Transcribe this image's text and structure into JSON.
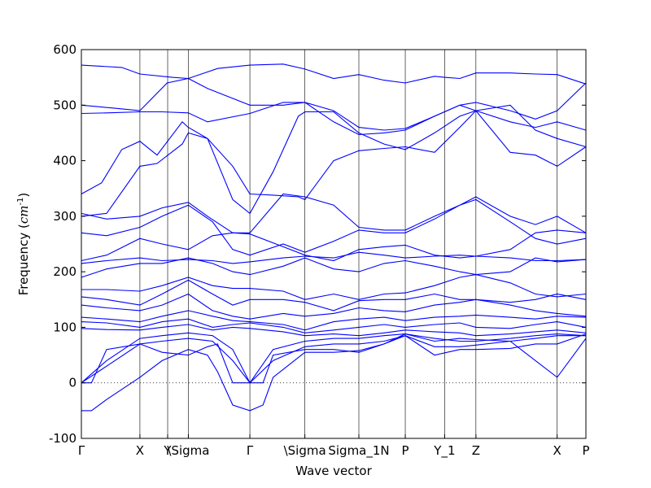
{
  "chart_data": {
    "type": "line",
    "xlabel": "Wave vector",
    "ylabel": "Frequency ($cm^{-1}$)",
    "ylim": [
      -100,
      600
    ],
    "yticks": [
      -100,
      0,
      100,
      200,
      300,
      400,
      500,
      600
    ],
    "xlim": [
      0,
      1
    ],
    "grid": false,
    "zero_line": {
      "y": 0,
      "style": "dotted",
      "color": "#000000"
    },
    "band_color": "#0000ff",
    "high_symmetry_points": [
      {
        "label": "Γ",
        "x": 0.0
      },
      {
        "label": "X",
        "x": 0.116
      },
      {
        "label": "Y",
        "x": 0.171
      },
      {
        "label": "\\Sigma",
        "x": 0.212
      },
      {
        "label": "Γ",
        "x": 0.334
      },
      {
        "label": "\\Sigma",
        "x": 0.443
      },
      {
        "label": "Sigma_1N",
        "x": 0.55
      },
      {
        "label": "P",
        "x": 0.642
      },
      {
        "label": "Y_1",
        "x": 0.72
      },
      {
        "label": "Z",
        "x": 0.782
      },
      {
        "label": "X",
        "x": 0.943
      },
      {
        "label": "P",
        "x": 1.0
      }
    ],
    "series": [
      {
        "x": [
          0,
          0.08,
          0.116,
          0.18,
          0.212,
          0.27,
          0.334,
          0.4,
          0.443,
          0.5,
          0.55,
          0.6,
          0.642,
          0.7,
          0.72,
          0.75,
          0.782,
          0.85,
          0.9,
          0.943,
          1.0
        ],
        "y": [
          572,
          568,
          556,
          550,
          548,
          566,
          572,
          574,
          565,
          548,
          555,
          545,
          540,
          552,
          550,
          548,
          558,
          558,
          556,
          555,
          538
        ]
      },
      {
        "x": [
          0,
          0.06,
          0.116,
          0.17,
          0.212,
          0.25,
          0.334,
          0.4,
          0.443,
          0.5,
          0.55,
          0.6,
          0.642,
          0.7,
          0.75,
          0.782,
          0.85,
          0.9,
          0.943,
          1.0
        ],
        "y": [
          500,
          495,
          490,
          540,
          548,
          530,
          500,
          500,
          505,
          470,
          447,
          450,
          455,
          480,
          500,
          505,
          490,
          475,
          490,
          540
        ]
      },
      {
        "x": [
          0,
          0.05,
          0.116,
          0.16,
          0.212,
          0.25,
          0.334,
          0.4,
          0.443,
          0.5,
          0.55,
          0.6,
          0.642,
          0.7,
          0.75,
          0.782,
          0.85,
          0.9,
          0.943,
          1.0
        ],
        "y": [
          485,
          486,
          488,
          488,
          486,
          470,
          485,
          505,
          505,
          490,
          460,
          455,
          458,
          480,
          500,
          490,
          470,
          460,
          470,
          455
        ]
      },
      {
        "x": [
          0,
          0.04,
          0.08,
          0.116,
          0.15,
          0.2,
          0.212,
          0.25,
          0.3,
          0.334,
          0.38,
          0.43,
          0.443,
          0.5,
          0.55,
          0.6,
          0.642,
          0.7,
          0.75,
          0.782,
          0.85,
          0.9,
          0.943,
          1.0
        ],
        "y": [
          340,
          360,
          420,
          435,
          410,
          470,
          460,
          440,
          390,
          340,
          338,
          335,
          330,
          400,
          418,
          422,
          425,
          415,
          460,
          490,
          500,
          455,
          440,
          425
        ]
      },
      {
        "x": [
          0,
          0.05,
          0.116,
          0.15,
          0.2,
          0.212,
          0.25,
          0.3,
          0.334,
          0.38,
          0.43,
          0.443,
          0.5,
          0.55,
          0.6,
          0.642,
          0.7,
          0.75,
          0.782,
          0.85,
          0.9,
          0.943,
          1.0
        ],
        "y": [
          300,
          305,
          390,
          395,
          430,
          450,
          440,
          330,
          305,
          380,
          480,
          488,
          488,
          450,
          430,
          420,
          450,
          480,
          490,
          415,
          410,
          390,
          425
        ]
      },
      {
        "x": [
          0,
          0.05,
          0.116,
          0.16,
          0.212,
          0.25,
          0.3,
          0.334,
          0.4,
          0.443,
          0.5,
          0.55,
          0.6,
          0.642,
          0.7,
          0.75,
          0.782,
          0.85,
          0.9,
          0.943,
          1.0
        ],
        "y": [
          305,
          295,
          300,
          315,
          325,
          300,
          270,
          270,
          340,
          335,
          320,
          280,
          275,
          275,
          300,
          320,
          335,
          300,
          285,
          300,
          270
        ]
      },
      {
        "x": [
          0,
          0.05,
          0.116,
          0.16,
          0.212,
          0.26,
          0.3,
          0.334,
          0.4,
          0.443,
          0.5,
          0.55,
          0.6,
          0.642,
          0.7,
          0.75,
          0.782,
          0.85,
          0.9,
          0.943,
          1.0
        ],
        "y": [
          270,
          265,
          280,
          300,
          320,
          290,
          240,
          230,
          250,
          235,
          255,
          275,
          270,
          270,
          295,
          320,
          330,
          290,
          260,
          250,
          260
        ]
      },
      {
        "x": [
          0,
          0.05,
          0.116,
          0.16,
          0.212,
          0.26,
          0.3,
          0.334,
          0.4,
          0.443,
          0.5,
          0.55,
          0.6,
          0.642,
          0.7,
          0.75,
          0.782,
          0.85,
          0.9,
          0.943,
          1.0
        ],
        "y": [
          220,
          230,
          260,
          250,
          240,
          265,
          270,
          268,
          245,
          230,
          220,
          240,
          245,
          248,
          230,
          225,
          228,
          240,
          270,
          275,
          270
        ]
      },
      {
        "x": [
          0,
          0.05,
          0.116,
          0.16,
          0.212,
          0.26,
          0.3,
          0.334,
          0.4,
          0.443,
          0.5,
          0.55,
          0.6,
          0.642,
          0.7,
          0.75,
          0.782,
          0.85,
          0.9,
          0.943,
          1.0
        ],
        "y": [
          215,
          220,
          225,
          220,
          222,
          220,
          215,
          218,
          225,
          228,
          225,
          235,
          230,
          225,
          228,
          230,
          228,
          225,
          220,
          220,
          222
        ]
      },
      {
        "x": [
          0,
          0.05,
          0.116,
          0.16,
          0.212,
          0.26,
          0.3,
          0.334,
          0.4,
          0.443,
          0.5,
          0.55,
          0.6,
          0.642,
          0.7,
          0.75,
          0.782,
          0.85,
          0.9,
          0.943,
          1.0
        ],
        "y": [
          190,
          205,
          215,
          215,
          225,
          215,
          200,
          195,
          210,
          225,
          205,
          200,
          215,
          220,
          210,
          200,
          195,
          200,
          225,
          218,
          222
        ]
      },
      {
        "x": [
          0,
          0.05,
          0.116,
          0.16,
          0.212,
          0.26,
          0.3,
          0.334,
          0.4,
          0.443,
          0.5,
          0.55,
          0.6,
          0.642,
          0.7,
          0.75,
          0.782,
          0.85,
          0.9,
          0.943,
          1.0
        ],
        "y": [
          168,
          168,
          165,
          175,
          190,
          175,
          170,
          170,
          165,
          150,
          160,
          150,
          160,
          162,
          175,
          190,
          195,
          180,
          160,
          155,
          160
        ]
      },
      {
        "x": [
          0,
          0.05,
          0.116,
          0.16,
          0.212,
          0.26,
          0.3,
          0.334,
          0.4,
          0.443,
          0.5,
          0.55,
          0.6,
          0.642,
          0.7,
          0.75,
          0.782,
          0.85,
          0.9,
          0.943,
          1.0
        ],
        "y": [
          155,
          150,
          140,
          160,
          185,
          160,
          140,
          150,
          150,
          145,
          130,
          148,
          150,
          150,
          160,
          150,
          150,
          145,
          150,
          160,
          150
        ]
      },
      {
        "x": [
          0,
          0.05,
          0.116,
          0.16,
          0.212,
          0.26,
          0.3,
          0.334,
          0.4,
          0.443,
          0.5,
          0.55,
          0.6,
          0.642,
          0.7,
          0.75,
          0.782,
          0.85,
          0.9,
          0.943,
          1.0
        ],
        "y": [
          140,
          135,
          130,
          140,
          160,
          130,
          120,
          115,
          125,
          120,
          125,
          135,
          130,
          128,
          140,
          145,
          150,
          140,
          130,
          125,
          120
        ]
      },
      {
        "x": [
          0,
          0.05,
          0.116,
          0.16,
          0.212,
          0.26,
          0.3,
          0.334,
          0.4,
          0.443,
          0.5,
          0.55,
          0.6,
          0.642,
          0.7,
          0.75,
          0.782,
          0.85,
          0.9,
          0.943,
          1.0
        ],
        "y": [
          118,
          115,
          110,
          120,
          130,
          120,
          112,
          110,
          105,
          95,
          110,
          115,
          118,
          112,
          118,
          120,
          122,
          118,
          115,
          120,
          118
        ]
      },
      {
        "x": [
          0,
          0.05,
          0.116,
          0.16,
          0.212,
          0.26,
          0.3,
          0.334,
          0.4,
          0.443,
          0.5,
          0.55,
          0.6,
          0.642,
          0.7,
          0.75,
          0.782,
          0.85,
          0.9,
          0.943,
          1.0
        ],
        "y": [
          110,
          108,
          100,
          110,
          115,
          100,
          105,
          108,
          100,
          90,
          95,
          100,
          105,
          100,
          105,
          108,
          100,
          98,
          105,
          110,
          100
        ]
      },
      {
        "x": [
          0,
          0.05,
          0.116,
          0.16,
          0.212,
          0.26,
          0.3,
          0.334,
          0.4,
          0.443,
          0.5,
          0.55,
          0.6,
          0.642,
          0.7,
          0.75,
          0.782,
          0.85,
          0.9,
          0.943,
          1.0
        ],
        "y": [
          98,
          96,
          95,
          100,
          105,
          95,
          100,
          98,
          92,
          85,
          88,
          85,
          90,
          95,
          92,
          90,
          85,
          88,
          92,
          95,
          90
        ]
      },
      {
        "x": [
          0,
          0.05,
          0.116,
          0.16,
          0.212,
          0.26,
          0.3,
          0.334,
          0.38,
          0.443,
          0.5,
          0.55,
          0.6,
          0.642,
          0.7,
          0.75,
          0.782,
          0.85,
          0.9,
          0.943,
          1.0
        ],
        "y": [
          0,
          40,
          80,
          85,
          90,
          85,
          60,
          0,
          60,
          75,
          80,
          80,
          85,
          88,
          80,
          75,
          75,
          80,
          85,
          88,
          85
        ]
      },
      {
        "x": [
          0,
          0.05,
          0.116,
          0.16,
          0.212,
          0.26,
          0.3,
          0.334,
          0.38,
          0.443,
          0.5,
          0.55,
          0.6,
          0.642,
          0.7,
          0.75,
          0.782,
          0.85,
          0.9,
          0.943,
          1.0
        ],
        "y": [
          0,
          30,
          70,
          75,
          80,
          75,
          40,
          0,
          40,
          65,
          70,
          70,
          75,
          85,
          65,
          65,
          68,
          75,
          80,
          85,
          85
        ]
      },
      {
        "x": [
          0,
          0.02,
          0.05,
          0.116,
          0.16,
          0.212,
          0.25,
          0.27,
          0.3,
          0.334,
          0.36,
          0.38,
          0.443,
          0.5,
          0.55,
          0.6,
          0.642,
          0.7,
          0.75,
          0.782,
          0.85,
          0.9,
          0.943,
          1.0
        ],
        "y": [
          -50,
          -50,
          -30,
          10,
          40,
          60,
          50,
          20,
          -40,
          -50,
          -40,
          10,
          55,
          55,
          58,
          70,
          85,
          50,
          60,
          60,
          62,
          70,
          70,
          88
        ]
      },
      {
        "x": [
          0,
          0.02,
          0.05,
          0.116,
          0.16,
          0.212,
          0.25,
          0.27,
          0.3,
          0.334,
          0.36,
          0.38,
          0.443,
          0.5,
          0.55,
          0.6,
          0.642,
          0.7,
          0.75,
          0.782,
          0.85,
          0.9,
          0.943,
          1.0
        ],
        "y": [
          0,
          0,
          60,
          70,
          55,
          50,
          65,
          70,
          0,
          0,
          0,
          50,
          60,
          60,
          55,
          70,
          88,
          75,
          80,
          78,
          75,
          40,
          10,
          80
        ]
      }
    ]
  }
}
